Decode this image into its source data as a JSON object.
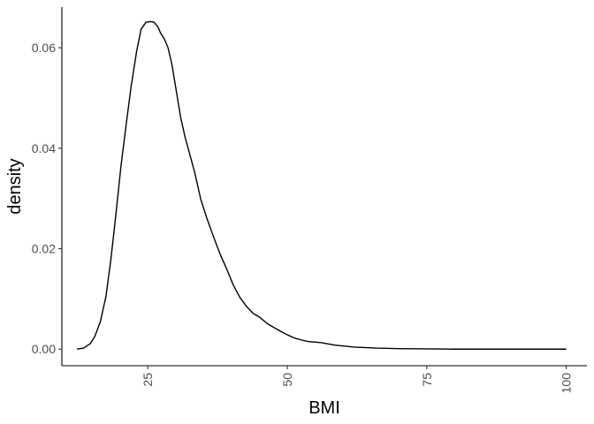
{
  "chart_data": {
    "type": "line",
    "title": "",
    "xlabel": "BMI",
    "ylabel": "density",
    "xlim": [
      9.6,
      103.7
    ],
    "ylim": [
      -0.0033,
      0.0681
    ],
    "x_ticks": [
      25,
      50,
      75,
      100
    ],
    "x_tick_labels": [
      "25",
      "50",
      "75",
      "100"
    ],
    "y_ticks": [
      0.0,
      0.02,
      0.04,
      0.06
    ],
    "y_tick_labels": [
      "0.00",
      "0.02",
      "0.04",
      "0.06"
    ],
    "grid": false,
    "legend": "none",
    "line_color": "#000000",
    "series": [
      {
        "x": [
          12.3,
          13.5,
          14.7,
          15.5,
          16.5,
          17.5,
          18.4,
          19.3,
          20.2,
          21.1,
          22.0,
          23.0,
          23.8,
          24.7,
          25.5,
          26.1,
          26.8,
          27.3,
          27.9,
          28.6,
          29.3,
          29.9,
          30.4,
          30.9,
          31.7,
          32.5,
          33.4,
          34.5,
          35.6,
          36.8,
          38.0,
          39.2,
          40.3,
          41.5,
          42.7,
          43.9,
          45.1,
          46.4,
          47.6,
          48.9,
          50.1,
          51.3,
          52.6,
          53.8,
          56.0,
          58.5,
          62.0,
          66.0,
          70.0,
          75.0,
          80.0,
          90.0,
          100.0
        ],
        "y": [
          0.0,
          0.0002,
          0.0011,
          0.0025,
          0.0055,
          0.0105,
          0.018,
          0.027,
          0.0365,
          0.0445,
          0.0522,
          0.0593,
          0.0637,
          0.0651,
          0.0652,
          0.0651,
          0.0642,
          0.0629,
          0.0619,
          0.0601,
          0.0568,
          0.0528,
          0.0494,
          0.0461,
          0.0421,
          0.0389,
          0.0352,
          0.0298,
          0.026,
          0.0223,
          0.0188,
          0.0158,
          0.0128,
          0.0103,
          0.0085,
          0.0071,
          0.0063,
          0.0051,
          0.0043,
          0.0035,
          0.0028,
          0.0022,
          0.0018,
          0.0015,
          0.0013,
          0.0008,
          0.0004,
          0.0002,
          0.0001,
          5e-05,
          0.0,
          0.0,
          0.0
        ]
      }
    ]
  }
}
